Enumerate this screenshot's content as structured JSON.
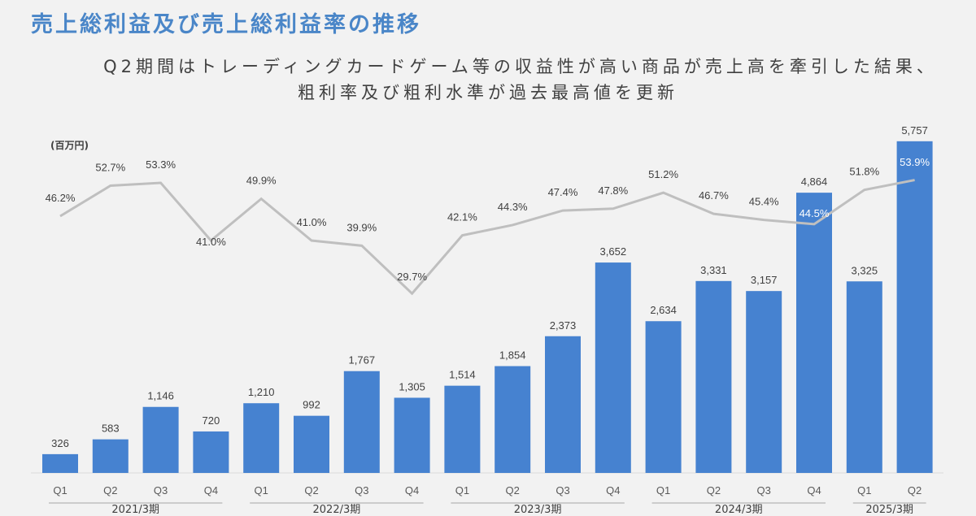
{
  "title": "売上総利益及び売上総利益率の推移",
  "subtitle_line1": "Q2期間はトレーディングカードゲーム等の収益性が高い商品が売上高を牽引した結果、",
  "subtitle_line2": "粗利率及び粗利水準が過去最高値を更新",
  "unit_label": "(百万円)",
  "colors": {
    "bar": "#4682d0",
    "line": "#bfbfbf",
    "title": "#4a86c8"
  },
  "chart_data": {
    "type": "bar+line",
    "title": "売上総利益及び売上総利益率の推移",
    "ylabel": "百万円",
    "categories": [
      "Q1",
      "Q2",
      "Q3",
      "Q4",
      "Q1",
      "Q2",
      "Q3",
      "Q4",
      "Q1",
      "Q2",
      "Q3",
      "Q4",
      "Q1",
      "Q2",
      "Q3",
      "Q4",
      "Q1",
      "Q2"
    ],
    "fiscal_years": [
      {
        "label": "2021/3期",
        "start": 0,
        "end": 3
      },
      {
        "label": "2022/3期",
        "start": 4,
        "end": 7
      },
      {
        "label": "2023/3期",
        "start": 8,
        "end": 11
      },
      {
        "label": "2024/3期",
        "start": 12,
        "end": 15
      },
      {
        "label": "2025/3期",
        "start": 16,
        "end": 17
      }
    ],
    "series": [
      {
        "name": "売上総利益",
        "type": "bar",
        "values": [
          326,
          583,
          1146,
          720,
          1210,
          992,
          1767,
          1305,
          1514,
          1854,
          2373,
          3652,
          2634,
          3331,
          3157,
          4864,
          3325,
          5757
        ],
        "labels": [
          "326",
          "583",
          "1,146",
          "720",
          "1,210",
          "992",
          "1,767",
          "1,305",
          "1,514",
          "1,854",
          "2,373",
          "3,652",
          "2,634",
          "3,331",
          "3,157",
          "4,864",
          "3,325",
          "5,757"
        ]
      },
      {
        "name": "売上総利益率",
        "type": "line",
        "values": [
          46.2,
          52.7,
          53.3,
          41.0,
          49.9,
          41.0,
          39.9,
          29.7,
          42.1,
          44.3,
          47.4,
          47.8,
          51.2,
          46.7,
          45.4,
          44.5,
          51.8,
          53.9
        ],
        "labels": [
          "46.2%",
          "52.7%",
          "53.3%",
          "41.0%",
          "49.9%",
          "41.0%",
          "39.9%",
          "29.7%",
          "42.1%",
          "44.3%",
          "47.4%",
          "47.8%",
          "51.2%",
          "46.7%",
          "45.4%",
          "44.5%",
          "51.8%",
          "53.9%"
        ]
      }
    ]
  }
}
